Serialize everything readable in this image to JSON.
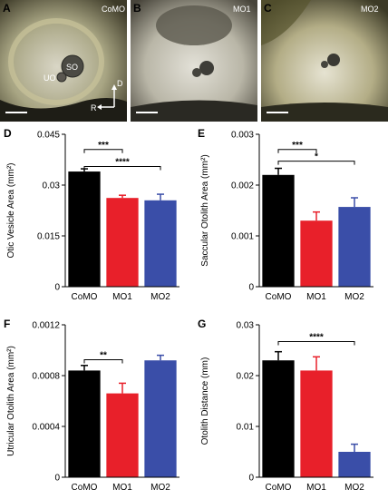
{
  "panels": {
    "A": {
      "letter": "A",
      "label": "CoMO",
      "uo": "UO",
      "so": "SO",
      "axis_d": "D",
      "axis_r": "R"
    },
    "B": {
      "letter": "B",
      "label": "MO1"
    },
    "C": {
      "letter": "C",
      "label": "MO2"
    }
  },
  "colors": {
    "CoMO": "#000000",
    "MO1": "#e8202a",
    "MO2": "#3a4ea8"
  },
  "chart_data": [
    {
      "panel": "D",
      "type": "bar",
      "categories": [
        "CoMO",
        "MO1",
        "MO2"
      ],
      "values": [
        0.034,
        0.0262,
        0.0255
      ],
      "errors": [
        0.0008,
        0.0008,
        0.0018
      ],
      "ylabel": "Otic Vesicle Area (mm²)",
      "ylim": [
        0,
        0.045
      ],
      "yticks": [
        "0",
        "0.015",
        "0.03",
        "0.045"
      ],
      "ytick_values": [
        0,
        0.015,
        0.03,
        0.045
      ],
      "significance": [
        {
          "from": 0,
          "to": 1,
          "label": "***",
          "level": 0.0405
        },
        {
          "from": 0,
          "to": 2,
          "label": "****",
          "level": 0.0355
        }
      ]
    },
    {
      "panel": "E",
      "type": "bar",
      "categories": [
        "CoMO",
        "MO1",
        "MO2"
      ],
      "values": [
        0.0022,
        0.0013,
        0.00157
      ],
      "errors": [
        0.00013,
        0.00017,
        0.00018
      ],
      "ylabel": "Saccular Otolith Area (mm²)",
      "ylim": [
        0,
        0.003
      ],
      "yticks": [
        "0",
        "0.001",
        "0.002",
        "0.003"
      ],
      "ytick_values": [
        0,
        0.001,
        0.002,
        0.003
      ],
      "significance": [
        {
          "from": 0,
          "to": 1,
          "label": "***",
          "level": 0.0027
        },
        {
          "from": 0,
          "to": 2,
          "label": "*",
          "level": 0.00247
        }
      ]
    },
    {
      "panel": "F",
      "type": "bar",
      "categories": [
        "CoMO",
        "MO1",
        "MO2"
      ],
      "values": [
        0.00084,
        0.00066,
        0.00092
      ],
      "errors": [
        4e-05,
        8e-05,
        4e-05
      ],
      "ylabel": "Utricular Otolith Area (mm²)",
      "ylim": [
        0,
        0.0012
      ],
      "yticks": [
        "0",
        "0.0004",
        "0.0008",
        "0.0012"
      ],
      "ytick_values": [
        0,
        0.0004,
        0.0008,
        0.0012
      ],
      "significance": [
        {
          "from": 0,
          "to": 1,
          "label": "**",
          "level": 0.000925
        }
      ]
    },
    {
      "panel": "G",
      "type": "bar",
      "categories": [
        "CoMO",
        "MO1",
        "MO2"
      ],
      "values": [
        0.023,
        0.021,
        0.005
      ],
      "errors": [
        0.0017,
        0.0027,
        0.0015
      ],
      "ylabel": "Otolith Distance (mm)",
      "ylim": [
        0,
        0.03
      ],
      "yticks": [
        "0",
        "0.01",
        "0.02",
        "0.03"
      ],
      "ytick_values": [
        0,
        0.01,
        0.02,
        0.03
      ],
      "significance": [
        {
          "from": 0,
          "to": 2,
          "label": "****",
          "level": 0.0267
        }
      ]
    }
  ]
}
